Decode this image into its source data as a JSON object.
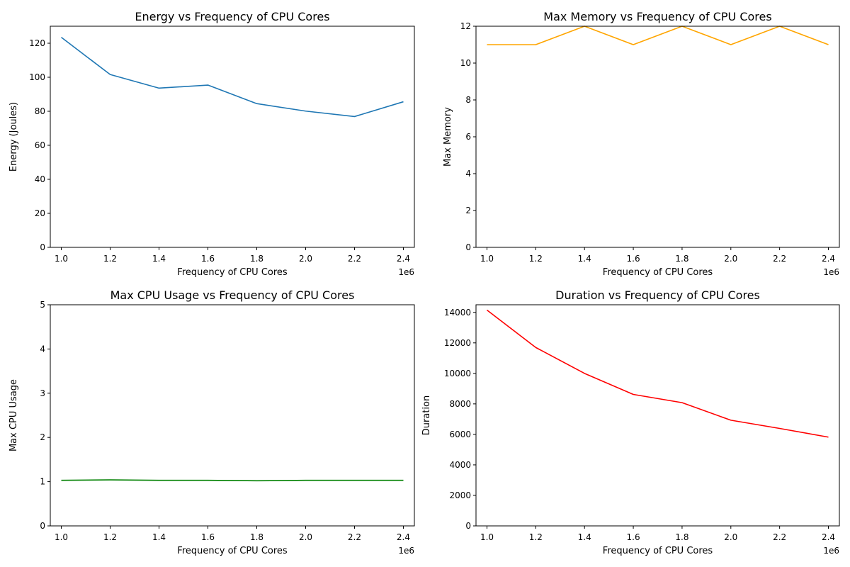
{
  "chart_data": [
    {
      "type": "line",
      "title": "Energy vs Frequency of CPU Cores",
      "xlabel": "Frequency of CPU Cores",
      "ylabel": "Energy (Joules)",
      "x_offset_label": "1e6",
      "x": [
        1000000,
        1200000,
        1400000,
        1600000,
        1800000,
        2000000,
        2200000,
        2400000
      ],
      "x_tick_labels": [
        "1.0",
        "1.2",
        "1.4",
        "1.6",
        "1.8",
        "2.0",
        "2.2",
        "2.4"
      ],
      "xlim": [
        955000,
        2445000
      ],
      "ylim": [
        0,
        130
      ],
      "y_ticks": [
        0,
        20,
        40,
        60,
        80,
        100,
        120
      ],
      "series": [
        {
          "values": [
            123.5,
            101.6,
            93.6,
            95.4,
            84.5,
            80.1,
            76.9,
            85.6
          ],
          "color": "#1f77b4"
        }
      ],
      "grid": false
    },
    {
      "type": "line",
      "title": "Max Memory vs Frequency of CPU Cores",
      "xlabel": "Frequency of CPU Cores",
      "ylabel": "Max Memory",
      "x_offset_label": "1e6",
      "x": [
        1000000,
        1200000,
        1400000,
        1600000,
        1800000,
        2000000,
        2200000,
        2400000
      ],
      "x_tick_labels": [
        "1.0",
        "1.2",
        "1.4",
        "1.6",
        "1.8",
        "2.0",
        "2.2",
        "2.4"
      ],
      "xlim": [
        955000,
        2445000
      ],
      "ylim": [
        0,
        12
      ],
      "y_ticks": [
        0,
        2,
        4,
        6,
        8,
        10,
        12
      ],
      "series": [
        {
          "values": [
            11,
            11,
            12,
            11,
            12,
            11,
            12,
            11
          ],
          "color": "#ffa500"
        }
      ],
      "grid": false
    },
    {
      "type": "line",
      "title": "Max CPU Usage vs Frequency of CPU Cores",
      "xlabel": "Frequency of CPU Cores",
      "ylabel": "Max CPU Usage",
      "x_offset_label": "1e6",
      "x": [
        1000000,
        1200000,
        1400000,
        1600000,
        1800000,
        2000000,
        2200000,
        2400000
      ],
      "x_tick_labels": [
        "1.0",
        "1.2",
        "1.4",
        "1.6",
        "1.8",
        "2.0",
        "2.2",
        "2.4"
      ],
      "xlim": [
        955000,
        2445000
      ],
      "ylim": [
        0,
        5
      ],
      "y_ticks": [
        0,
        1,
        2,
        3,
        4,
        5
      ],
      "series": [
        {
          "values": [
            1.03,
            1.04,
            1.03,
            1.03,
            1.02,
            1.03,
            1.03,
            1.03
          ],
          "color": "#008000"
        }
      ],
      "grid": false
    },
    {
      "type": "line",
      "title": "Duration vs Frequency of CPU Cores",
      "xlabel": "Frequency of CPU Cores",
      "ylabel": "Duration",
      "x_offset_label": "1e6",
      "x": [
        1000000,
        1200000,
        1400000,
        1600000,
        1800000,
        2000000,
        2200000,
        2400000
      ],
      "x_tick_labels": [
        "1.0",
        "1.2",
        "1.4",
        "1.6",
        "1.8",
        "2.0",
        "2.2",
        "2.4"
      ],
      "xlim": [
        955000,
        2445000
      ],
      "ylim": [
        0,
        14500
      ],
      "y_ticks": [
        0,
        2000,
        4000,
        6000,
        8000,
        10000,
        12000,
        14000
      ],
      "series": [
        {
          "values": [
            14150,
            11700,
            10000,
            8620,
            8080,
            6930,
            6390,
            5820
          ],
          "color": "#ff0000"
        }
      ],
      "grid": false
    }
  ]
}
